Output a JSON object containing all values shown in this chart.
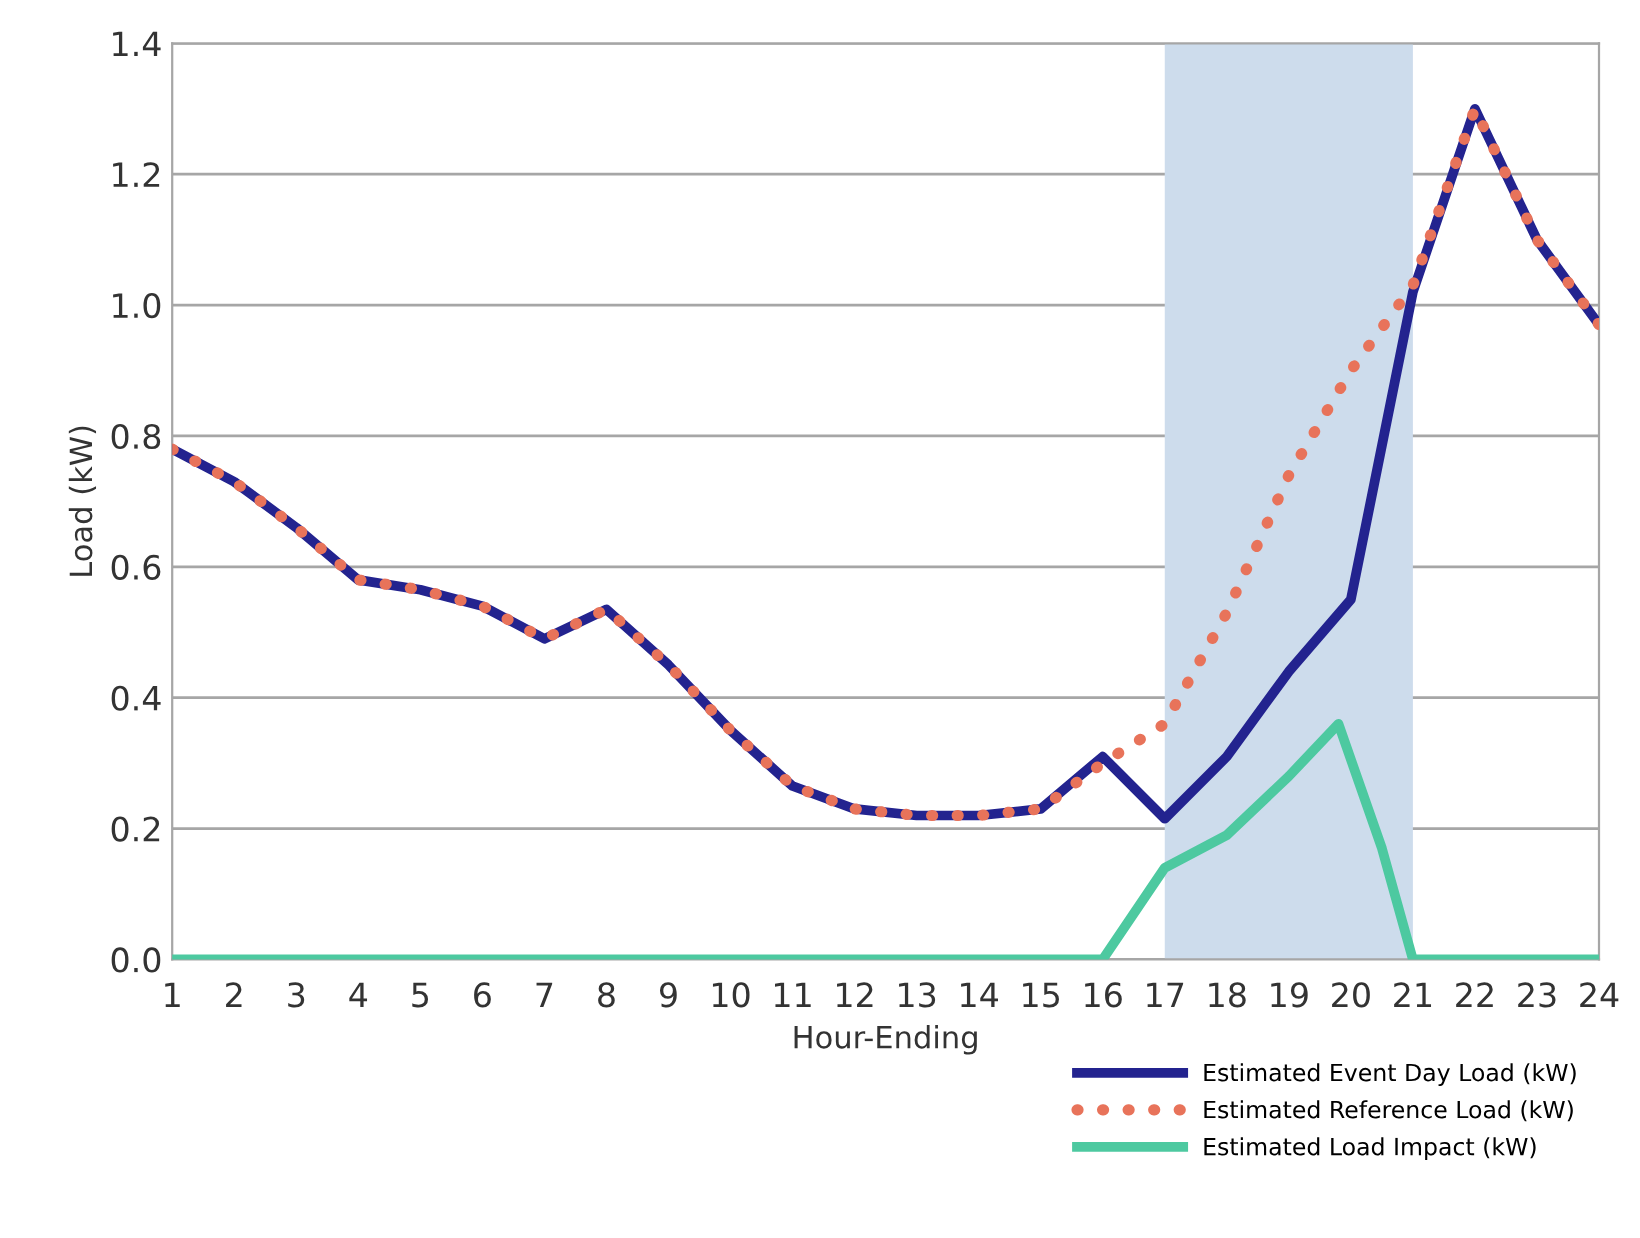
{
  "chart_data": {
    "type": "line",
    "xlabel": "Hour-Ending",
    "ylabel": "Load (kW)",
    "x": [
      1,
      2,
      3,
      4,
      5,
      6,
      7,
      8,
      9,
      10,
      11,
      12,
      13,
      14,
      15,
      16,
      17,
      18,
      19,
      20,
      21,
      22,
      23,
      24
    ],
    "series": [
      {
        "name": "Estimated Event Day Load (kW)",
        "color": "#23238f",
        "line_style": "solid",
        "values": [
          0.78,
          0.73,
          0.66,
          0.58,
          0.565,
          0.54,
          0.49,
          0.535,
          0.45,
          0.35,
          0.265,
          0.23,
          0.22,
          0.22,
          0.23,
          0.31,
          0.215,
          0.31,
          0.44,
          0.55,
          1.02,
          1.3,
          1.1,
          0.97
        ]
      },
      {
        "name": "Estimated Reference Load (kW)",
        "color": "#e8735a",
        "line_style": "dotted",
        "values": [
          0.78,
          0.73,
          0.66,
          0.58,
          0.565,
          0.54,
          0.49,
          0.535,
          0.45,
          0.35,
          0.265,
          0.23,
          0.22,
          0.22,
          0.23,
          0.3,
          0.36,
          0.53,
          0.74,
          0.9,
          1.03,
          1.3,
          1.1,
          0.97
        ]
      },
      {
        "name": "Estimated Load Impact (kW)",
        "color": "#4dc9a0",
        "line_style": "solid",
        "x": [
          1,
          2,
          3,
          4,
          5,
          6,
          7,
          8,
          9,
          10,
          11,
          12,
          13,
          14,
          15,
          16,
          17,
          18,
          19,
          19.8,
          20.5,
          21,
          22,
          23,
          24
        ],
        "values": [
          0,
          0,
          0,
          0,
          0,
          0,
          0,
          0,
          0,
          0,
          0,
          0,
          0,
          0,
          0,
          0,
          0.14,
          0.19,
          0.28,
          0.36,
          0.17,
          0,
          0,
          0,
          0
        ]
      }
    ],
    "xlim": [
      1,
      24
    ],
    "xticks": [
      1,
      2,
      3,
      4,
      5,
      6,
      7,
      8,
      9,
      10,
      11,
      12,
      13,
      14,
      15,
      16,
      17,
      18,
      19,
      20,
      21,
      22,
      23,
      24
    ],
    "ylim": [
      0,
      1.4
    ],
    "yticks": [
      {
        "value": 0,
        "label": "0.0"
      },
      {
        "value": 0.2,
        "label": "0.2"
      },
      {
        "value": 0.4,
        "label": "0.4"
      },
      {
        "value": 0.6,
        "label": "0.6"
      },
      {
        "value": 0.8,
        "label": "0.8"
      },
      {
        "value": 1.0,
        "label": "1.0"
      },
      {
        "value": 1.2,
        "label": "1.2"
      },
      {
        "value": 1.4,
        "label": "1.4"
      }
    ],
    "bands": [
      {
        "axis": "x",
        "from": 17,
        "to": 21,
        "color": "#cddcec"
      }
    ],
    "grid": "y",
    "legend": "bottom right",
    "marker": "none"
  }
}
